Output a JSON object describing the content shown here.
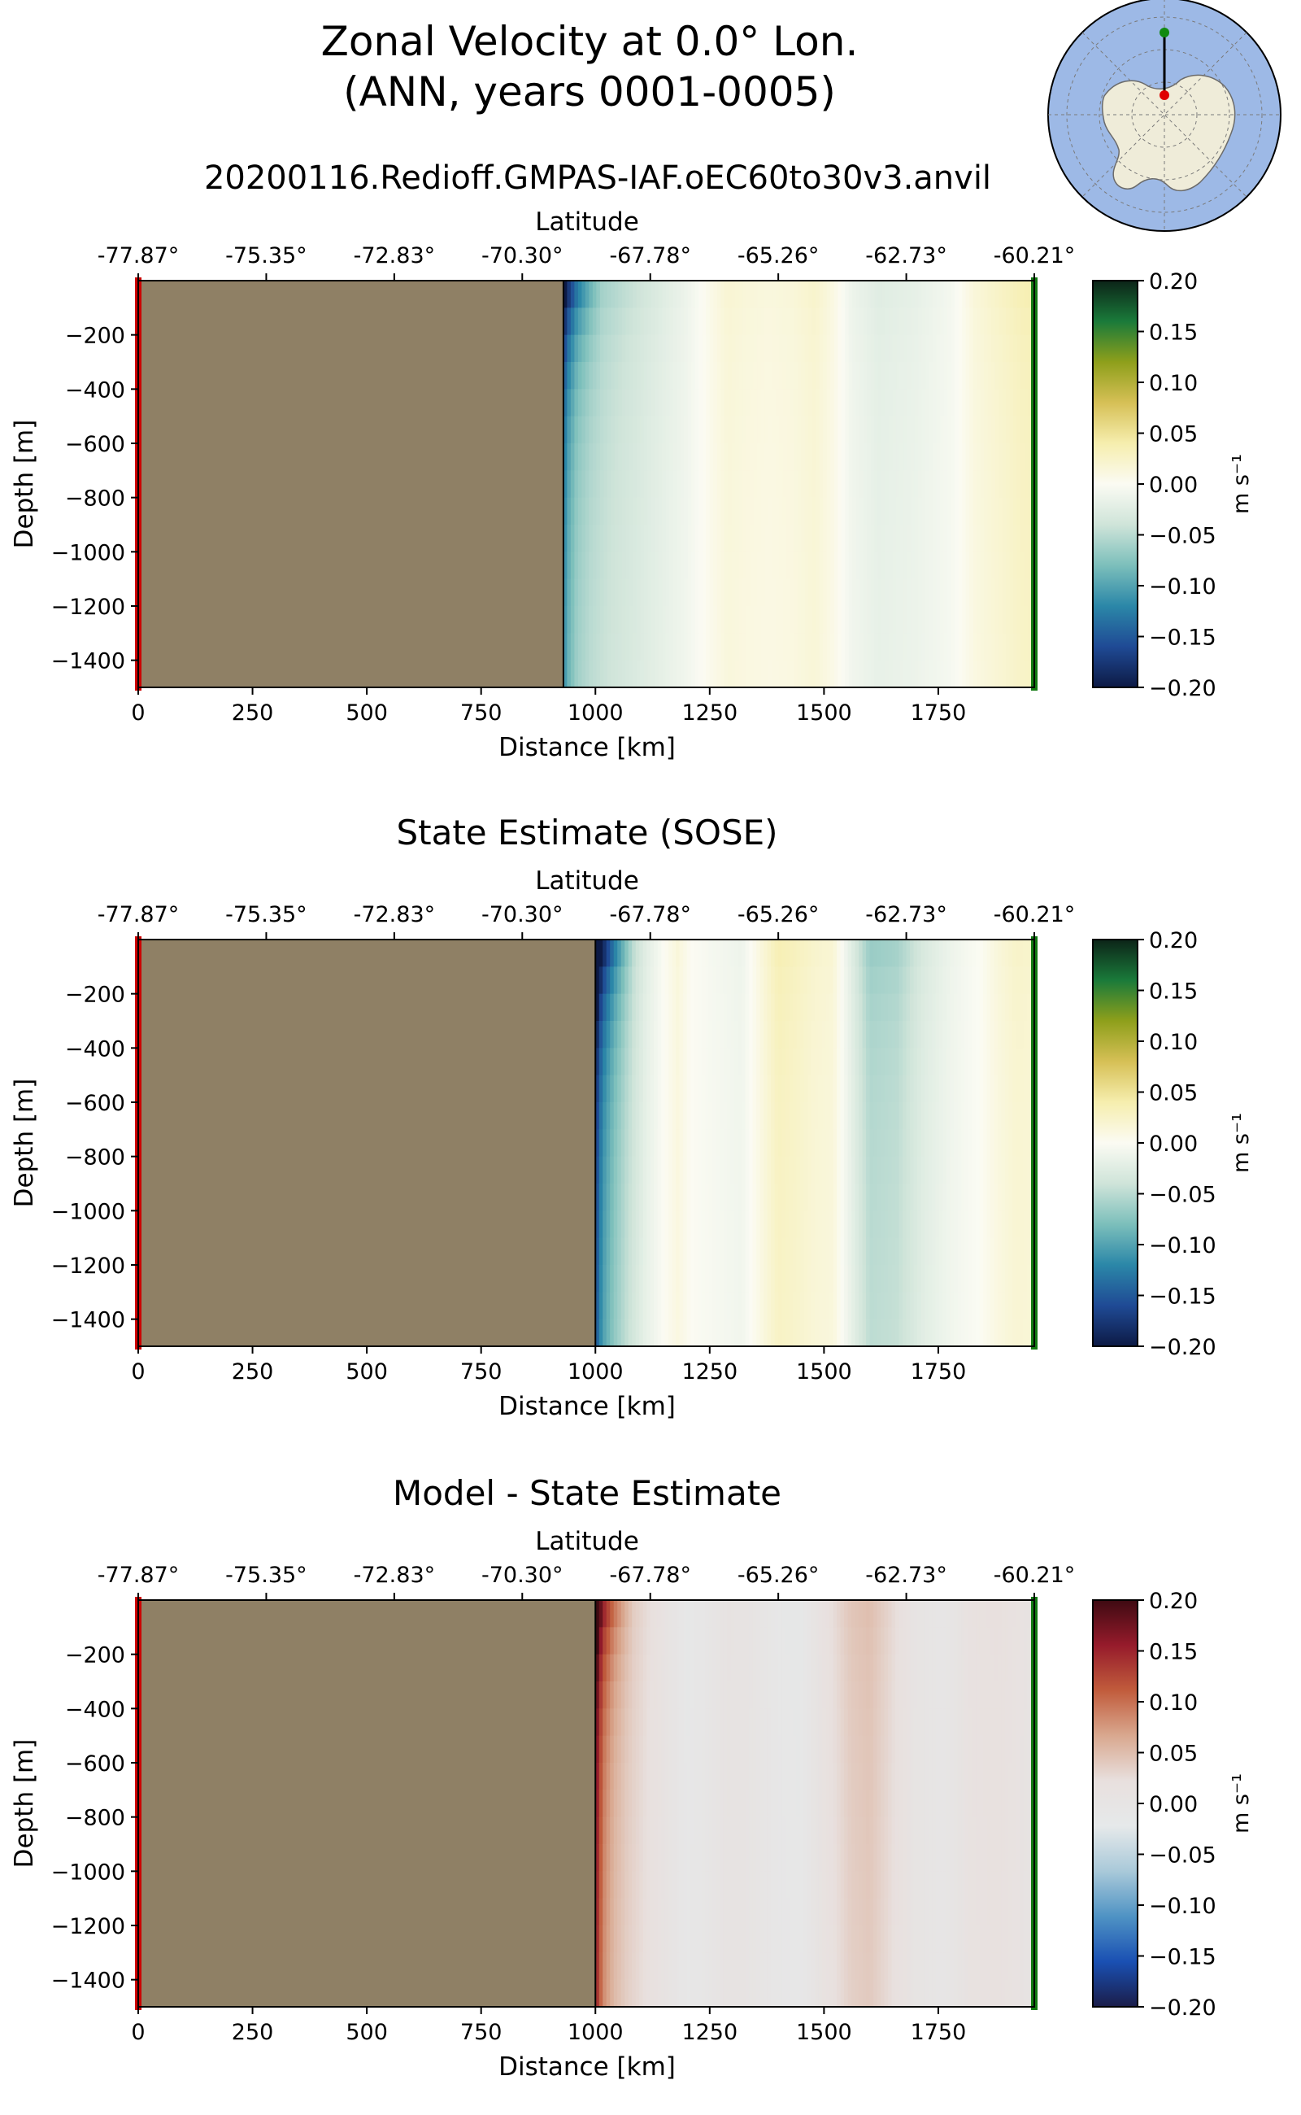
{
  "figure": {
    "title_line1": "Zonal Velocity at 0.0° Lon.",
    "title_line2": "(ANN, years 0001-0005)",
    "subtitle": "20200116.Redioff.GMPAS-IAF.oEC60to30v3.anvil",
    "inset_map": "south-polar-stereographic-map-antarctica"
  },
  "colors": {
    "land": "#8f8065",
    "start_marker": "#cc0000",
    "end_marker": "#127a12",
    "velocity_cmap": [
      "#0d1a45",
      "#1f4a95",
      "#2b87a8",
      "#7cbfbb",
      "#cfe4d9",
      "#fbfbf3",
      "#f6eeae",
      "#d6c056",
      "#8e9f1b",
      "#1a7a3a",
      "#0c2418"
    ],
    "diff_cmap": [
      "#1b1d49",
      "#1a50b3",
      "#4f93c4",
      "#a9c9d9",
      "#e6e9ea",
      "#e8e0de",
      "#d9a88f",
      "#c15c3c",
      "#961b2b",
      "#3e0a12"
    ]
  },
  "chart_data": [
    {
      "type": "heatmap",
      "title": "",
      "xlabel": "Distance [km]",
      "ylabel": "Depth [m]",
      "top_xlabel": "Latitude",
      "xlim": [
        0,
        1960
      ],
      "ylim": [
        -1500,
        0
      ],
      "xticks": [
        0,
        250,
        500,
        750,
        1000,
        1250,
        1500,
        1750
      ],
      "xtick_labels": [
        "0",
        "250",
        "500",
        "750",
        "1000",
        "1250",
        "1500",
        "1750"
      ],
      "yticks": [
        -200,
        -400,
        -600,
        -800,
        -1000,
        -1200,
        -1400
      ],
      "ytick_labels": [
        "−200",
        "−400",
        "−600",
        "−800",
        "−1000",
        "−1200",
        "−1400"
      ],
      "top_ticks_km": [
        0,
        280,
        560,
        840,
        1120,
        1400,
        1680,
        1960
      ],
      "top_tick_labels": [
        "-77.87°",
        "-75.35°",
        "-72.83°",
        "-70.30°",
        "-67.78°",
        "-65.26°",
        "-62.73°",
        "-60.21°"
      ],
      "land_until_km": 930,
      "profile": {
        "x": [
          930,
          940,
          960,
          990,
          1030,
          1080,
          1150,
          1200,
          1250,
          1290,
          1330,
          1380,
          1430,
          1480,
          1520,
          1560,
          1620,
          1700,
          1780,
          1830,
          1880,
          1930,
          1960
        ],
        "v": [
          -0.13,
          -0.1,
          -0.07,
          -0.055,
          -0.045,
          -0.035,
          -0.02,
          -0.01,
          0.005,
          0.015,
          0.012,
          0.01,
          0.012,
          0.018,
          0.008,
          -0.01,
          -0.02,
          -0.015,
          -0.005,
          0.012,
          0.02,
          0.028,
          0.03
        ]
      },
      "surface_boost": 0.06,
      "colorbar": {
        "vmin": -0.2,
        "vmax": 0.2,
        "cmap": "velocity",
        "ticks": [
          0.2,
          0.15,
          0.1,
          0.05,
          0.0,
          -0.05,
          -0.1,
          -0.15,
          -0.2
        ],
        "tick_labels": [
          "0.20",
          "0.15",
          "0.10",
          "0.05",
          "0.00",
          "−0.05",
          "−0.10",
          "−0.15",
          "−0.20"
        ],
        "label": "m s⁻¹"
      }
    },
    {
      "type": "heatmap",
      "title": "State Estimate (SOSE)",
      "xlabel": "Distance [km]",
      "ylabel": "Depth [m]",
      "top_xlabel": "Latitude",
      "xlim": [
        0,
        1960
      ],
      "ylim": [
        -1500,
        0
      ],
      "xticks": [
        0,
        250,
        500,
        750,
        1000,
        1250,
        1500,
        1750
      ],
      "xtick_labels": [
        "0",
        "250",
        "500",
        "750",
        "1000",
        "1250",
        "1500",
        "1750"
      ],
      "yticks": [
        -200,
        -400,
        -600,
        -800,
        -1000,
        -1200,
        -1400
      ],
      "ytick_labels": [
        "−200",
        "−400",
        "−600",
        "−800",
        "−1000",
        "−1200",
        "−1400"
      ],
      "top_ticks_km": [
        0,
        280,
        560,
        840,
        1120,
        1400,
        1680,
        1960
      ],
      "top_tick_labels": [
        "-77.87°",
        "-75.35°",
        "-72.83°",
        "-70.30°",
        "-67.78°",
        "-65.26°",
        "-62.73°",
        "-60.21°"
      ],
      "land_until_km": 1000,
      "profile": {
        "x": [
          1000,
          1008,
          1020,
          1040,
          1070,
          1110,
          1150,
          1180,
          1210,
          1260,
          1320,
          1370,
          1400,
          1440,
          1480,
          1520,
          1560,
          1600,
          1660,
          1720,
          1780,
          1840,
          1880,
          1920,
          1960
        ],
        "v": [
          -0.18,
          -0.14,
          -0.11,
          -0.08,
          -0.05,
          -0.02,
          0.0,
          0.012,
          0.0,
          -0.005,
          -0.01,
          0.015,
          0.03,
          0.025,
          0.018,
          0.015,
          -0.02,
          -0.055,
          -0.05,
          -0.025,
          -0.01,
          0.0,
          0.012,
          0.02,
          0.018
        ]
      },
      "surface_boost": 0.05,
      "colorbar": {
        "vmin": -0.2,
        "vmax": 0.2,
        "cmap": "velocity",
        "ticks": [
          0.2,
          0.15,
          0.1,
          0.05,
          0.0,
          -0.05,
          -0.1,
          -0.15,
          -0.2
        ],
        "tick_labels": [
          "0.20",
          "0.15",
          "0.10",
          "0.05",
          "0.00",
          "−0.05",
          "−0.10",
          "−0.15",
          "−0.20"
        ],
        "label": "m s⁻¹"
      }
    },
    {
      "type": "heatmap",
      "title": "Model - State Estimate",
      "xlabel": "Distance [km]",
      "ylabel": "Depth [m]",
      "top_xlabel": "Latitude",
      "xlim": [
        0,
        1960
      ],
      "ylim": [
        -1500,
        0
      ],
      "xticks": [
        0,
        250,
        500,
        750,
        1000,
        1250,
        1500,
        1750
      ],
      "xtick_labels": [
        "0",
        "250",
        "500",
        "750",
        "1000",
        "1250",
        "1500",
        "1750"
      ],
      "yticks": [
        -200,
        -400,
        -600,
        -800,
        -1000,
        -1200,
        -1400
      ],
      "ytick_labels": [
        "−200",
        "−400",
        "−600",
        "−800",
        "−1000",
        "−1200",
        "−1400"
      ],
      "top_ticks_km": [
        0,
        280,
        560,
        840,
        1120,
        1400,
        1680,
        1960
      ],
      "top_tick_labels": [
        "-77.87°",
        "-75.35°",
        "-72.83°",
        "-70.30°",
        "-67.78°",
        "-65.26°",
        "-62.73°",
        "-60.21°"
      ],
      "land_until_km": 1000,
      "profile": {
        "x": [
          1000,
          1008,
          1020,
          1040,
          1070,
          1110,
          1150,
          1200,
          1240,
          1290,
          1340,
          1400,
          1450,
          1500,
          1560,
          1600,
          1640,
          1700,
          1760,
          1820,
          1880,
          1940,
          1960
        ],
        "v": [
          0.18,
          0.13,
          0.09,
          0.06,
          0.04,
          0.025,
          0.01,
          -0.012,
          -0.005,
          0.01,
          0.005,
          -0.01,
          -0.012,
          0.015,
          0.04,
          0.045,
          0.03,
          0.005,
          -0.005,
          0.015,
          0.02,
          0.01,
          0.008
        ]
      },
      "surface_boost": 0.02,
      "colorbar": {
        "vmin": -0.2,
        "vmax": 0.2,
        "cmap": "diff",
        "ticks": [
          0.2,
          0.15,
          0.1,
          0.05,
          0.0,
          -0.05,
          -0.1,
          -0.15,
          -0.2
        ],
        "tick_labels": [
          "0.20",
          "0.15",
          "0.10",
          "0.05",
          "0.00",
          "−0.05",
          "−0.10",
          "−0.15",
          "−0.20"
        ],
        "label": "m s⁻¹"
      }
    }
  ]
}
